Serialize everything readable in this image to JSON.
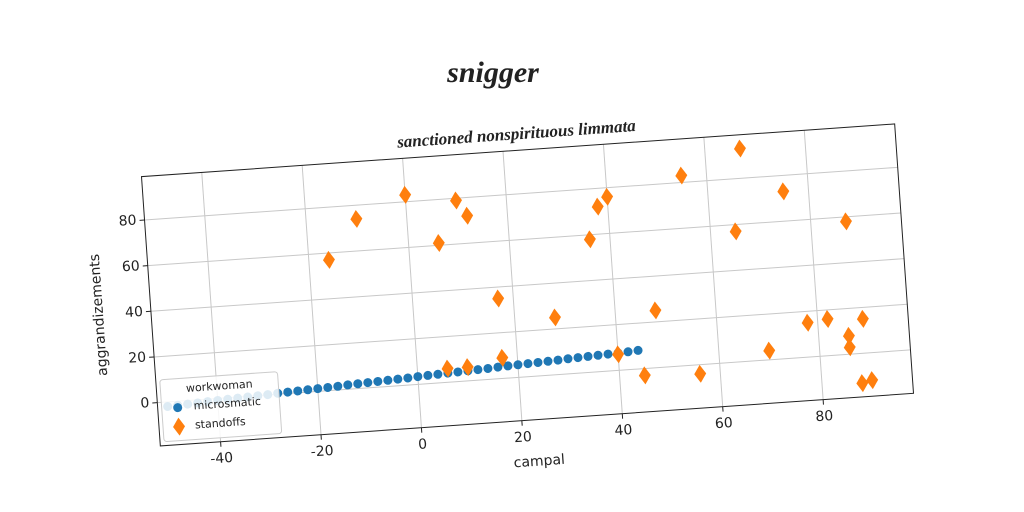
{
  "chart_data": {
    "type": "scatter",
    "title": "snigger",
    "subtitle": "sanctioned nonspirituous limmata",
    "xlabel": "campal",
    "ylabel": "aggrandizements",
    "legend_title": "workwoman",
    "legend_position": "lower left",
    "grid": true,
    "xlim": [
      -52,
      98
    ],
    "ylim": [
      -19,
      99
    ],
    "xticks": [
      -40,
      -20,
      0,
      20,
      40,
      60,
      80
    ],
    "yticks": [
      0,
      20,
      40,
      60,
      80
    ],
    "series": [
      {
        "name": "microsmatic",
        "color": "#1f77b4",
        "marker": "circle",
        "x": [
          -50,
          -48,
          -46,
          -44,
          -42,
          -40,
          -38,
          -36,
          -34,
          -32,
          -30,
          -28,
          -26,
          -24,
          -22,
          -20,
          -18,
          -16,
          -14,
          -12,
          -10,
          -8,
          -6,
          -4,
          -2,
          0,
          2,
          4,
          6,
          8,
          10,
          12,
          14,
          16,
          18,
          20,
          22,
          24,
          26,
          28,
          30,
          32,
          34,
          36,
          38,
          40,
          42,
          44
        ],
        "values": [
          -2.0,
          -1.8,
          -1.6,
          -1.4,
          -1.1,
          -0.9,
          -0.7,
          -0.5,
          -0.3,
          -0.1,
          0.1,
          0.4,
          0.6,
          0.8,
          1.0,
          1.2,
          1.4,
          1.6,
          1.9,
          2.1,
          2.3,
          2.5,
          2.7,
          2.9,
          3.1,
          3.4,
          3.6,
          3.8,
          4.0,
          4.2,
          4.4,
          4.6,
          4.8,
          5.1,
          5.3,
          5.5,
          5.7,
          5.9,
          6.1,
          6.3,
          6.6,
          6.8,
          7.0,
          7.2,
          7.4,
          7.6,
          7.8,
          8.1
        ]
      },
      {
        "name": "standoffs",
        "color": "#ff7f0e",
        "marker": "diamond",
        "x": [
          -16,
          -10,
          0,
          6,
          10,
          12,
          17,
          17,
          6,
          10,
          28,
          36,
          38,
          40,
          40,
          45,
          48,
          55,
          56,
          65,
          67,
          70,
          75,
          78,
          82,
          86,
          86,
          88,
          90,
          87,
          89
        ],
        "values": [
          57,
          74,
          83,
          61,
          79,
          72,
          35,
          9,
          6,
          6,
          25,
          58,
          72,
          76,
          7,
          -3,
          25,
          83,
          -4,
          57,
          93,
          4,
          73,
          15,
          16,
          8,
          3,
          -13,
          -12,
          58,
          15
        ]
      }
    ]
  }
}
